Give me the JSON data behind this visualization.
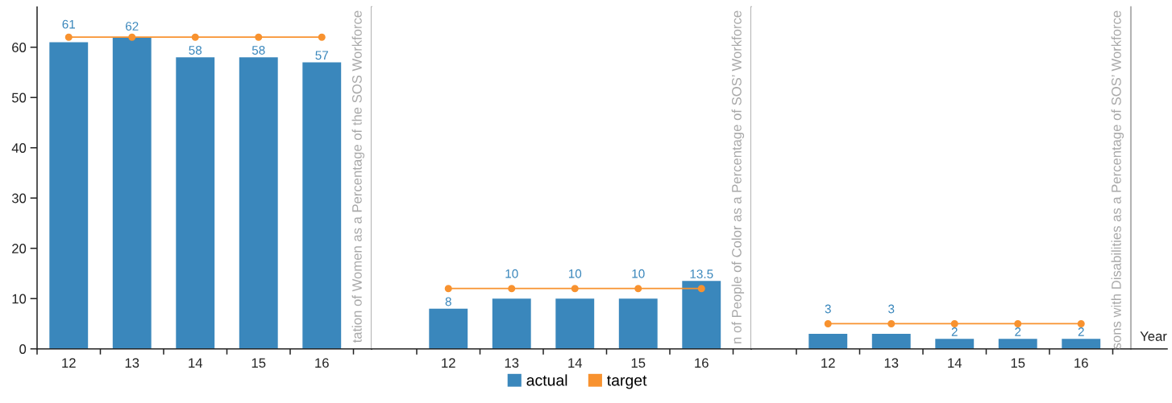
{
  "chart_data": [
    {
      "type": "bar",
      "title": "tation of Women as a Percentage of the SOS Workforce",
      "categories": [
        "12",
        "13",
        "14",
        "15",
        "16"
      ],
      "series": [
        {
          "name": "actual",
          "color": "#3a87bc",
          "values": [
            61,
            62,
            58,
            58,
            57
          ],
          "value_labels": [
            "61",
            "62",
            "58",
            "58",
            "57"
          ]
        },
        {
          "name": "target",
          "type": "line",
          "color": "#f8922f",
          "marker": "circle",
          "values": [
            62,
            62,
            62,
            62,
            62
          ]
        }
      ],
      "ylim": [
        0,
        68
      ],
      "yticks": [
        0,
        10,
        20,
        30,
        40,
        50,
        60
      ],
      "legend": "bottom"
    },
    {
      "type": "bar",
      "title": "n of People of Color as a Percentage of SOS’ Workforce",
      "categories": [
        "12",
        "13",
        "14",
        "15",
        "16"
      ],
      "series": [
        {
          "name": "actual",
          "color": "#3a87bc",
          "values": [
            8,
            10,
            10,
            10,
            13.5
          ],
          "value_labels": [
            "8",
            "10",
            "10",
            "10",
            "13.5"
          ]
        },
        {
          "name": "target",
          "type": "line",
          "color": "#f8922f",
          "marker": "circle",
          "values": [
            12,
            12,
            12,
            12,
            12
          ]
        }
      ],
      "ylim": [
        0,
        68
      ],
      "tick_labels": "x"
    },
    {
      "type": "bar",
      "title": "sons with Disabilities as a Percentage of SOS’ Workforce",
      "xlabel": "Year",
      "categories": [
        "12",
        "13",
        "14",
        "15",
        "16"
      ],
      "series": [
        {
          "name": "actual",
          "color": "#3a87bc",
          "values": [
            3,
            3,
            2,
            2,
            2
          ],
          "value_labels": [
            "3",
            "3",
            "2",
            "2",
            "2"
          ]
        },
        {
          "name": "target",
          "type": "line",
          "color": "#f8922f",
          "marker": "circle",
          "values": [
            5,
            5,
            5,
            5,
            5
          ]
        }
      ],
      "ylim": [
        0,
        68
      ],
      "tick_labels": "x"
    }
  ]
}
